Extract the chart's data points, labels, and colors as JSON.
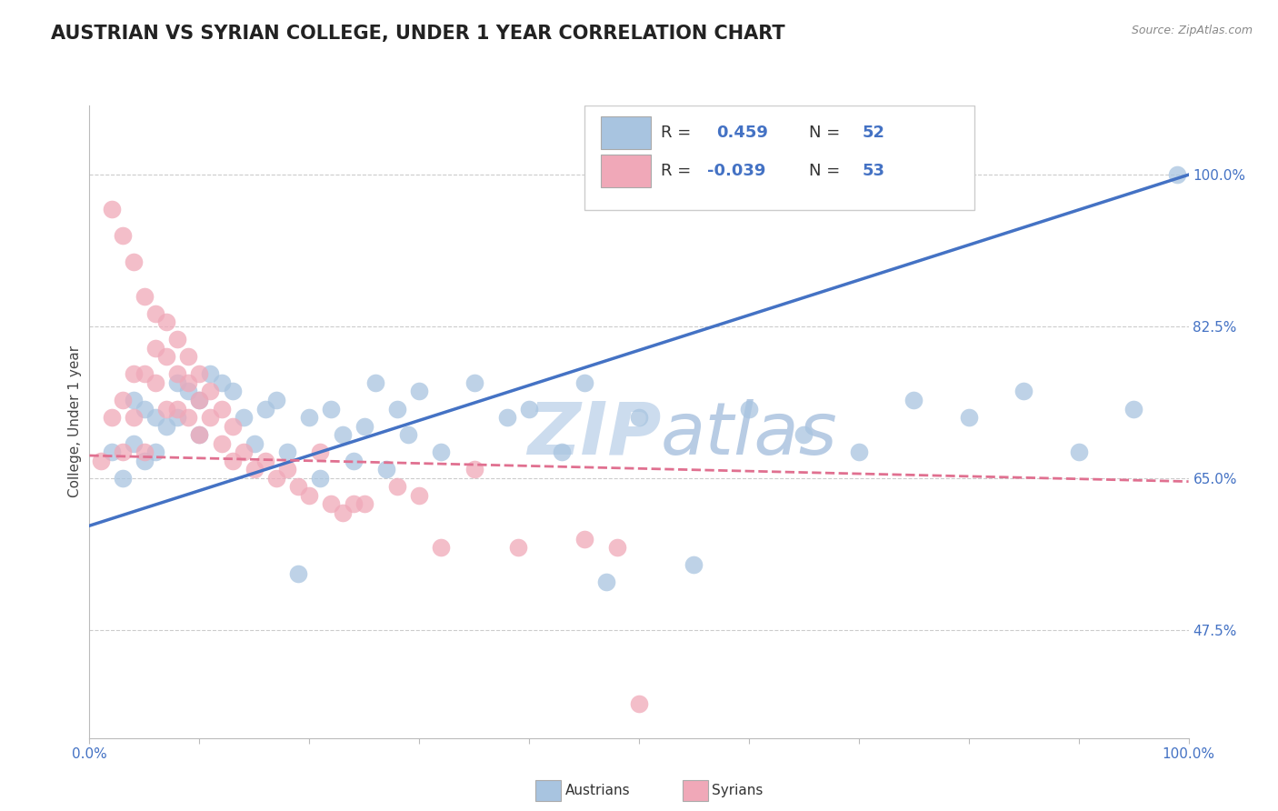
{
  "title": "AUSTRIAN VS SYRIAN COLLEGE, UNDER 1 YEAR CORRELATION CHART",
  "source_text": "Source: ZipAtlas.com",
  "ylabel": "College, Under 1 year",
  "r_austrian": 0.459,
  "n_austrian": 52,
  "r_syrian": -0.039,
  "n_syrian": 53,
  "austrian_color": "#a8c4e0",
  "syrian_color": "#f0a8b8",
  "austrian_line_color": "#4472c4",
  "syrian_line_color": "#e07090",
  "watermark_color": "#ccdcee",
  "ytick_labels": [
    "47.5%",
    "65.0%",
    "82.5%",
    "100.0%"
  ],
  "ytick_values": [
    0.475,
    0.65,
    0.825,
    1.0
  ],
  "xlim": [
    0.0,
    1.0
  ],
  "ylim": [
    0.35,
    1.08
  ],
  "background_color": "#ffffff",
  "grid_color": "#cccccc",
  "title_color": "#222222",
  "tick_color": "#4472c4",
  "austrian_x": [
    0.02,
    0.03,
    0.04,
    0.04,
    0.05,
    0.05,
    0.06,
    0.06,
    0.07,
    0.08,
    0.08,
    0.09,
    0.1,
    0.1,
    0.11,
    0.12,
    0.13,
    0.14,
    0.15,
    0.16,
    0.17,
    0.18,
    0.19,
    0.2,
    0.21,
    0.22,
    0.23,
    0.24,
    0.25,
    0.26,
    0.27,
    0.28,
    0.29,
    0.3,
    0.32,
    0.35,
    0.38,
    0.4,
    0.43,
    0.45,
    0.47,
    0.5,
    0.55,
    0.6,
    0.65,
    0.7,
    0.75,
    0.8,
    0.85,
    0.9,
    0.95,
    0.99
  ],
  "austrian_y": [
    0.68,
    0.65,
    0.74,
    0.69,
    0.73,
    0.67,
    0.72,
    0.68,
    0.71,
    0.76,
    0.72,
    0.75,
    0.74,
    0.7,
    0.77,
    0.76,
    0.75,
    0.72,
    0.69,
    0.73,
    0.74,
    0.68,
    0.54,
    0.72,
    0.65,
    0.73,
    0.7,
    0.67,
    0.71,
    0.76,
    0.66,
    0.73,
    0.7,
    0.75,
    0.68,
    0.76,
    0.72,
    0.73,
    0.68,
    0.76,
    0.53,
    0.72,
    0.55,
    0.73,
    0.7,
    0.68,
    0.74,
    0.72,
    0.75,
    0.68,
    0.73,
    1.0
  ],
  "syrian_x": [
    0.01,
    0.02,
    0.02,
    0.03,
    0.03,
    0.03,
    0.04,
    0.04,
    0.04,
    0.05,
    0.05,
    0.05,
    0.06,
    0.06,
    0.06,
    0.07,
    0.07,
    0.07,
    0.08,
    0.08,
    0.08,
    0.09,
    0.09,
    0.09,
    0.1,
    0.1,
    0.1,
    0.11,
    0.11,
    0.12,
    0.12,
    0.13,
    0.13,
    0.14,
    0.15,
    0.16,
    0.17,
    0.18,
    0.19,
    0.2,
    0.21,
    0.22,
    0.23,
    0.24,
    0.25,
    0.28,
    0.3,
    0.32,
    0.35,
    0.39,
    0.45,
    0.48,
    0.5
  ],
  "syrian_y": [
    0.67,
    0.96,
    0.72,
    0.93,
    0.74,
    0.68,
    0.9,
    0.77,
    0.72,
    0.86,
    0.77,
    0.68,
    0.84,
    0.8,
    0.76,
    0.83,
    0.79,
    0.73,
    0.81,
    0.77,
    0.73,
    0.79,
    0.76,
    0.72,
    0.77,
    0.74,
    0.7,
    0.75,
    0.72,
    0.73,
    0.69,
    0.71,
    0.67,
    0.68,
    0.66,
    0.67,
    0.65,
    0.66,
    0.64,
    0.63,
    0.68,
    0.62,
    0.61,
    0.62,
    0.62,
    0.64,
    0.63,
    0.57,
    0.66,
    0.57,
    0.58,
    0.57,
    0.39
  ],
  "austrian_line_x": [
    0.0,
    1.0
  ],
  "austrian_line_y": [
    0.595,
    1.0
  ],
  "syrian_line_x": [
    0.0,
    1.0
  ],
  "syrian_line_y": [
    0.676,
    0.646
  ]
}
